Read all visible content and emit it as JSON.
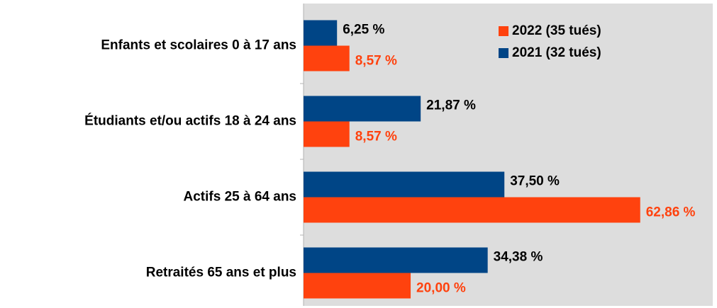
{
  "chart_data": {
    "type": "barh",
    "categories": [
      "Enfants et scolaires 0 à 17 ans",
      "Étudiants et/ou actifs 18 à 24 ans",
      "Actifs 25 à 64 ans",
      "Retraités 65 ans et plus"
    ],
    "series": [
      {
        "name": "2022 (35 tués)",
        "color": "#ff420e",
        "values": [
          8.57,
          8.57,
          62.86,
          20.0
        ],
        "value_labels": [
          "8,57 %",
          "8,57 %",
          "62,86 %",
          "20,00 %"
        ]
      },
      {
        "name": "2021 (32 tués)",
        "color": "#004586",
        "values": [
          6.25,
          21.87,
          37.5,
          34.38
        ],
        "value_labels": [
          "6,25 %",
          "21,87 %",
          "37,50 %",
          "34,38 %"
        ]
      }
    ],
    "xlim": [
      0,
      76.4
    ],
    "legend": "top-right"
  }
}
